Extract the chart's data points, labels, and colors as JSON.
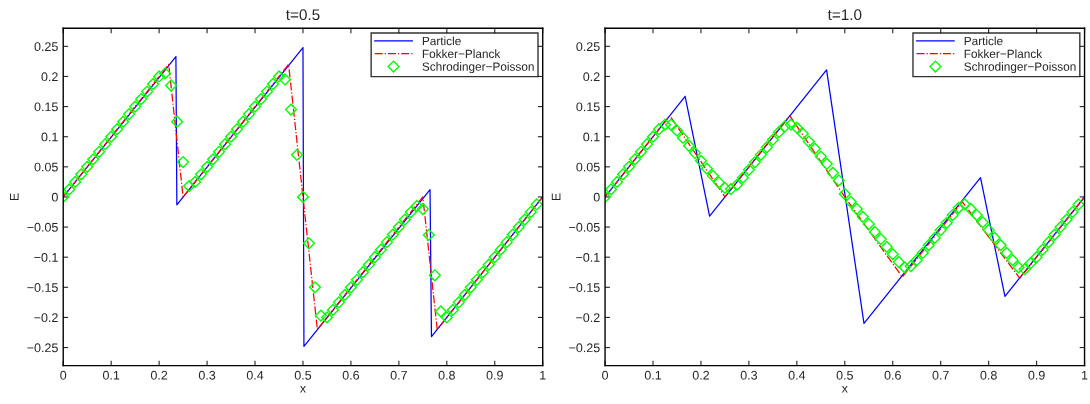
{
  "chart_data": [
    {
      "type": "line",
      "title": "t=0.5",
      "xlabel": "x",
      "ylabel": "E",
      "xlim": [
        0,
        1
      ],
      "ylim": [
        -0.28,
        0.28
      ],
      "xticks": [
        0,
        0.1,
        0.2,
        0.3,
        0.4,
        0.5,
        0.6,
        0.7,
        0.8,
        0.9,
        1
      ],
      "yticks": [
        {
          "value": -0.25,
          "label": "−0.25"
        },
        {
          "value": -0.2,
          "label": "−0.2"
        },
        {
          "value": -0.15,
          "label": "−0.15"
        },
        {
          "value": -0.1,
          "label": "−0.1"
        },
        {
          "value": -0.05,
          "label": "−0.05"
        },
        0,
        0.05,
        0.1,
        0.15,
        0.2,
        0.25
      ],
      "grid": false,
      "legend": "top right",
      "series": [
        {
          "name": "Particle",
          "color": "#0000ff",
          "line_style": "solid",
          "x": [
            0,
            0.235,
            0.237,
            0.5,
            0.502,
            0.765,
            0.768,
            1
          ],
          "values": [
            0,
            0.233,
            -0.013,
            0.248,
            -0.248,
            0.012,
            -0.232,
            0
          ]
        },
        {
          "name": "Fokker−Planck",
          "color": "#ff0000",
          "line_style": "dashdot",
          "x": [
            0,
            0.22,
            0.25,
            0.47,
            0.53,
            0.75,
            0.78,
            1
          ],
          "values": [
            0,
            0.22,
            0.0,
            0.22,
            -0.22,
            0.0,
            -0.22,
            0
          ]
        },
        {
          "name": "Schrodinger−Poisson",
          "type": "scatter",
          "color": "#00ff00",
          "marker": "diamond",
          "x": [
            0,
            0.0125,
            0.025,
            0.0375,
            0.05,
            0.0625,
            0.075,
            0.0875,
            0.1,
            0.1125,
            0.125,
            0.1375,
            0.15,
            0.1625,
            0.175,
            0.1875,
            0.2,
            0.2125,
            0.225,
            0.2375,
            0.25,
            0.2625,
            0.275,
            0.2875,
            0.3,
            0.3125,
            0.325,
            0.3375,
            0.35,
            0.3625,
            0.375,
            0.3875,
            0.4,
            0.4125,
            0.425,
            0.4375,
            0.45,
            0.4625,
            0.475,
            0.4875,
            0.5,
            0.5125,
            0.525,
            0.5375,
            0.55,
            0.5625,
            0.575,
            0.5875,
            0.6,
            0.6125,
            0.625,
            0.6375,
            0.65,
            0.6625,
            0.675,
            0.6875,
            0.7,
            0.7125,
            0.725,
            0.7375,
            0.75,
            0.7625,
            0.775,
            0.7875,
            0.8,
            0.8125,
            0.825,
            0.8375,
            0.85,
            0.8625,
            0.875,
            0.8875,
            0.9,
            0.9125,
            0.925,
            0.9375,
            0.95,
            0.9625,
            0.975,
            0.9875
          ],
          "values": [
            0,
            0.0125,
            0.025,
            0.0375,
            0.05,
            0.0625,
            0.075,
            0.0875,
            0.1,
            0.1125,
            0.125,
            0.1375,
            0.15,
            0.1625,
            0.175,
            0.1875,
            0.2,
            0.205,
            0.185,
            0.125,
            0.058,
            0.018,
            0.025,
            0.0375,
            0.05,
            0.0625,
            0.075,
            0.0875,
            0.1,
            0.1125,
            0.125,
            0.1375,
            0.15,
            0.1625,
            0.175,
            0.1875,
            0.2,
            0.195,
            0.145,
            0.07,
            0.0,
            -0.077,
            -0.15,
            -0.197,
            -0.2,
            -0.1875,
            -0.175,
            -0.1625,
            -0.15,
            -0.1375,
            -0.125,
            -0.1125,
            -0.1,
            -0.0875,
            -0.075,
            -0.0625,
            -0.05,
            -0.0375,
            -0.025,
            -0.015,
            -0.02,
            -0.063,
            -0.13,
            -0.19,
            -0.2,
            -0.1875,
            -0.175,
            -0.1625,
            -0.15,
            -0.1375,
            -0.125,
            -0.1125,
            -0.1,
            -0.0875,
            -0.075,
            -0.0625,
            -0.05,
            -0.0375,
            -0.025,
            -0.0125
          ]
        }
      ]
    },
    {
      "type": "line",
      "title": "t=1.0",
      "xlabel": "x",
      "ylabel": "E",
      "xlim": [
        0,
        1
      ],
      "ylim": [
        -0.28,
        0.28
      ],
      "xticks": [
        0,
        0.1,
        0.2,
        0.3,
        0.4,
        0.5,
        0.6,
        0.7,
        0.8,
        0.9,
        1
      ],
      "yticks": [
        {
          "value": -0.25,
          "label": "−0.25"
        },
        {
          "value": -0.2,
          "label": "−0.2"
        },
        {
          "value": -0.15,
          "label": "−0.15"
        },
        {
          "value": -0.1,
          "label": "−0.1"
        },
        {
          "value": -0.05,
          "label": "−0.05"
        },
        0,
        0.05,
        0.1,
        0.15,
        0.2,
        0.25
      ],
      "grid": false,
      "legend": "top right",
      "series": [
        {
          "name": "Particle",
          "color": "#0000ff",
          "line_style": "solid",
          "x": [
            0,
            0.167,
            0.218,
            0.462,
            0.54,
            0.783,
            0.834,
            1
          ],
          "values": [
            0,
            0.167,
            -0.032,
            0.211,
            -0.21,
            0.032,
            -0.165,
            0
          ]
        },
        {
          "name": "Fokker−Planck",
          "color": "#ff0000",
          "line_style": "dashdot",
          "x": [
            0,
            0.135,
            0.25,
            0.385,
            0.5,
            0.62,
            0.745,
            0.865,
            1
          ],
          "values": [
            0,
            0.135,
            0.0,
            0.135,
            0.0,
            -0.133,
            -0.008,
            -0.135,
            0
          ]
        },
        {
          "name": "Schrodinger−Poisson",
          "type": "scatter",
          "color": "#00ff00",
          "marker": "diamond",
          "x": [
            0,
            0.0125,
            0.025,
            0.0375,
            0.05,
            0.0625,
            0.075,
            0.0875,
            0.1,
            0.1125,
            0.125,
            0.1375,
            0.15,
            0.1625,
            0.175,
            0.1875,
            0.2,
            0.2125,
            0.225,
            0.2375,
            0.25,
            0.2625,
            0.275,
            0.2875,
            0.3,
            0.3125,
            0.325,
            0.3375,
            0.35,
            0.3625,
            0.375,
            0.3875,
            0.4,
            0.4125,
            0.425,
            0.4375,
            0.45,
            0.4625,
            0.475,
            0.4875,
            0.5,
            0.5125,
            0.525,
            0.5375,
            0.55,
            0.5625,
            0.575,
            0.5875,
            0.6,
            0.6125,
            0.625,
            0.6375,
            0.65,
            0.6625,
            0.675,
            0.6875,
            0.7,
            0.7125,
            0.725,
            0.7375,
            0.75,
            0.7625,
            0.775,
            0.7875,
            0.8,
            0.8125,
            0.825,
            0.8375,
            0.85,
            0.8625,
            0.875,
            0.8875,
            0.9,
            0.9125,
            0.925,
            0.9375,
            0.95,
            0.9625,
            0.975,
            0.9875
          ],
          "values": [
            0,
            0.0125,
            0.025,
            0.0375,
            0.05,
            0.0625,
            0.075,
            0.0875,
            0.1,
            0.1125,
            0.12,
            0.12,
            0.11,
            0.098,
            0.085,
            0.073,
            0.06,
            0.047,
            0.035,
            0.024,
            0.015,
            0.013,
            0.02,
            0.032,
            0.045,
            0.0575,
            0.07,
            0.0825,
            0.095,
            0.1075,
            0.117,
            0.12,
            0.115,
            0.105,
            0.092,
            0.08,
            0.067,
            0.055,
            0.04,
            0.0275,
            0.005,
            -0.008,
            -0.02,
            -0.033,
            -0.045,
            -0.058,
            -0.07,
            -0.083,
            -0.095,
            -0.108,
            -0.117,
            -0.115,
            -0.105,
            -0.093,
            -0.08,
            -0.068,
            -0.055,
            -0.043,
            -0.03,
            -0.018,
            -0.012,
            -0.02,
            -0.03,
            -0.042,
            -0.055,
            -0.068,
            -0.08,
            -0.093,
            -0.105,
            -0.117,
            -0.12,
            -0.11,
            -0.1,
            -0.0875,
            -0.075,
            -0.0625,
            -0.05,
            -0.0375,
            -0.025,
            -0.0125
          ]
        }
      ]
    }
  ]
}
